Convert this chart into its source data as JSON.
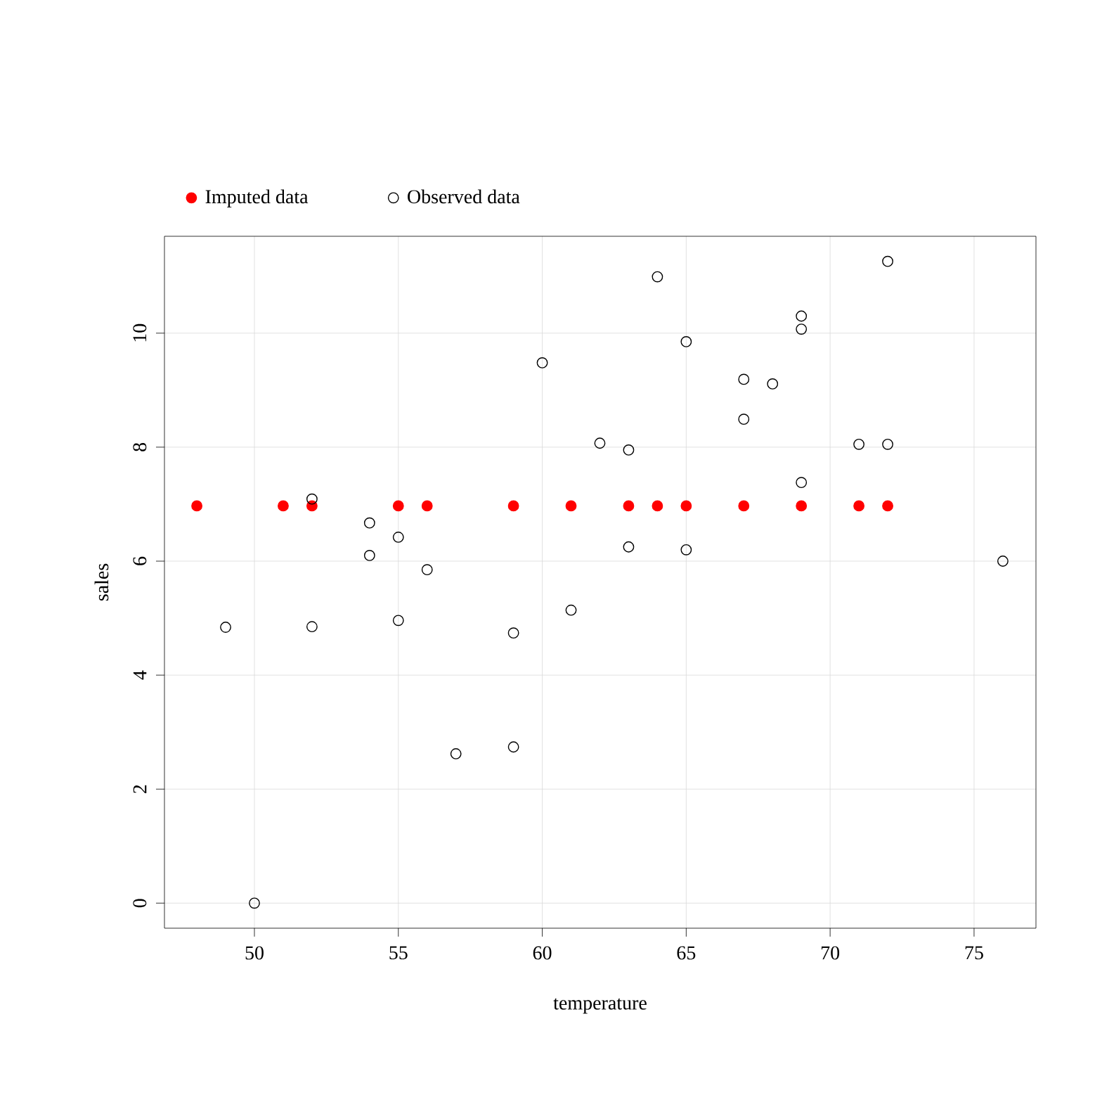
{
  "chart_data": {
    "type": "scatter",
    "xlabel": "temperature",
    "ylabel": "sales",
    "xlim": [
      46.875,
      77.15
    ],
    "ylim": [
      -0.44,
      11.7
    ],
    "xticks": [
      50,
      55,
      60,
      65,
      70,
      75
    ],
    "yticks": [
      0,
      2,
      4,
      6,
      8,
      10
    ],
    "grid": true,
    "legend": "top",
    "marker": "circle",
    "series": [
      {
        "name": "Imputed data",
        "color": "#ff0000",
        "x": [
          48,
          51,
          52,
          55,
          56,
          59,
          61,
          63,
          64,
          65,
          67,
          69,
          71,
          72
        ],
        "values": [
          6.97,
          6.97,
          6.97,
          6.97,
          6.97,
          6.97,
          6.97,
          6.97,
          6.97,
          6.97,
          6.97,
          6.97,
          6.97,
          6.97
        ]
      },
      {
        "name": "Observed data",
        "color": "#000000",
        "x": [
          49,
          50,
          52,
          52,
          54,
          54,
          55,
          55,
          56,
          57,
          59,
          59,
          60,
          61,
          62,
          63,
          63,
          64,
          65,
          65,
          67,
          67,
          68,
          69,
          69,
          69,
          71,
          72,
          72,
          76
        ],
        "values": [
          4.84,
          0,
          7.09,
          4.85,
          6.67,
          6.1,
          6.42,
          4.96,
          5.85,
          2.62,
          4.74,
          2.74,
          9.48,
          5.14,
          8.07,
          7.95,
          6.25,
          10.99,
          9.85,
          6.2,
          9.19,
          8.49,
          9.11,
          10.3,
          10.07,
          7.38,
          8.05,
          11.26,
          8.05,
          6.0
        ]
      }
    ]
  }
}
